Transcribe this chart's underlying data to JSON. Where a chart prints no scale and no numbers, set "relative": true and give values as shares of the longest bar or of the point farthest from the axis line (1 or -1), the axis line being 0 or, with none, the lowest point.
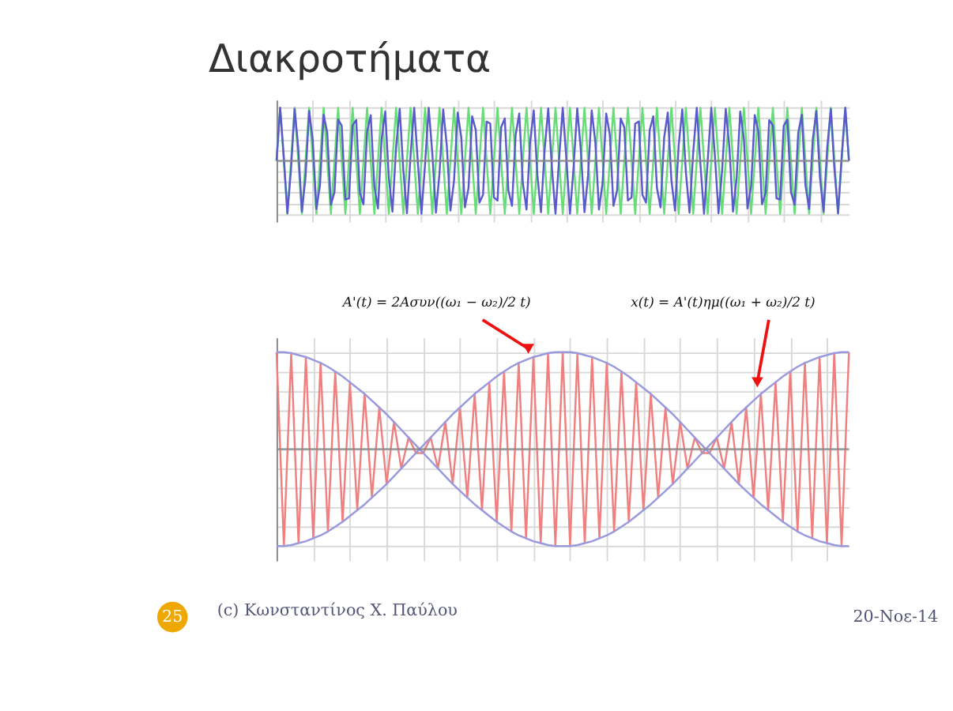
{
  "chart_data": [
    {
      "type": "line",
      "title": "Διακροτήματα",
      "relative": true,
      "grid": true,
      "tick_labels": false,
      "line_style": "solid",
      "categories": [
        null,
        null,
        null,
        null,
        null,
        null,
        null,
        null,
        null,
        null,
        null,
        null,
        null,
        null,
        null,
        null,
        null,
        null,
        null,
        null,
        null,
        null,
        null,
        null,
        null,
        null,
        null,
        null,
        null,
        null,
        null,
        null,
        null,
        null,
        null,
        null,
        null,
        null,
        null,
        null,
        null,
        null,
        null,
        null,
        null,
        null,
        null,
        null,
        null,
        null,
        null,
        null,
        null,
        null,
        null,
        null,
        null,
        null,
        null,
        null,
        null,
        null,
        null,
        null,
        null,
        null,
        null,
        null,
        null,
        null,
        null,
        null,
        null,
        null,
        null,
        null,
        null,
        null,
        null,
        null,
        null,
        null,
        null,
        null,
        null,
        null,
        null,
        null,
        null,
        null,
        null,
        null,
        null,
        null,
        null,
        null,
        null,
        null,
        null,
        null,
        null,
        null,
        null,
        null,
        null,
        null,
        null,
        null,
        null,
        null,
        null,
        null,
        null,
        null,
        null,
        null,
        null,
        null,
        null,
        null,
        null,
        null,
        null,
        null,
        null,
        null,
        null,
        null,
        null,
        null,
        null,
        null,
        null,
        null,
        null,
        null,
        null,
        null,
        null,
        null,
        null,
        null,
        null,
        null,
        null,
        null,
        null,
        null,
        null,
        null,
        null,
        null,
        null,
        null,
        null,
        null,
        null,
        null,
        null
      ],
      "series": [
        {
          "color": "#66dd77",
          "values": [
            0,
            1,
            0,
            -1,
            0,
            1,
            0,
            -1,
            0,
            1,
            0,
            -1,
            0,
            1,
            0,
            -1,
            0,
            1,
            0,
            -1,
            0,
            1,
            0,
            -1,
            0,
            1,
            0,
            -1,
            0,
            1,
            0,
            -1,
            0,
            1,
            0,
            -1,
            0,
            1,
            0,
            -1,
            0,
            1,
            0,
            -1,
            0,
            1,
            0,
            -1,
            0,
            1,
            0,
            -1,
            0,
            1,
            0,
            -1,
            0,
            1,
            0,
            -1,
            0,
            1,
            0,
            -1,
            0,
            1,
            0,
            -1,
            0,
            1,
            0,
            -1,
            0,
            1,
            0,
            -1,
            0,
            1,
            0,
            -1,
            0,
            1,
            0,
            -1,
            0,
            1,
            0,
            -1,
            0,
            1,
            0,
            -1,
            0,
            1,
            0,
            -1,
            0,
            1,
            0,
            -1,
            0,
            1,
            0,
            -1,
            0,
            1,
            0,
            -1,
            0,
            1,
            0,
            -1,
            0,
            1,
            0,
            -1,
            0,
            1,
            0,
            -1,
            0,
            1,
            0,
            -1,
            0,
            1,
            0,
            -1,
            0,
            1,
            0,
            -1,
            0,
            1,
            0,
            -1,
            0,
            1,
            0,
            -1,
            0,
            1,
            0,
            -1,
            0,
            1,
            0,
            -1,
            0,
            1,
            0,
            -1,
            0,
            1,
            0,
            -1,
            0,
            1,
            0
          ]
        },
        {
          "color": "#5a5acc",
          "values": [
            0,
            1.0,
            0.08,
            -0.99,
            -0.16,
            0.98,
            0.24,
            -0.96,
            -0.31,
            0.94,
            0.39,
            -0.91,
            -0.46,
            0.87,
            0.53,
            -0.83,
            -0.59,
            0.78,
            0.66,
            -0.73,
            -0.71,
            0.67,
            0.77,
            -0.61,
            -0.82,
            0.55,
            0.86,
            -0.48,
            -0.9,
            0.41,
            0.93,
            -0.33,
            -0.96,
            0.26,
            0.98,
            -0.18,
            -0.99,
            0.1,
            1.0,
            -0.02,
            -1.0,
            -0.06,
            1.0,
            0.14,
            -0.98,
            -0.22,
            0.97,
            0.29,
            -0.94,
            -0.37,
            0.91,
            0.44,
            -0.88,
            -0.51,
            0.84,
            0.58,
            -0.79,
            -0.64,
            0.74,
            0.7,
            -0.69,
            -0.75,
            0.63,
            0.8,
            -0.56,
            -0.85,
            0.49,
            0.89,
            -0.42,
            -0.92,
            0.35,
            0.95,
            -0.27,
            -0.97,
            0.2,
            0.99,
            -0.12,
            -1.0,
            0.04,
            1.0,
            0.04,
            -1.0,
            -0.12,
            0.99,
            0.2,
            -0.97,
            -0.27,
            0.95,
            0.35,
            -0.92,
            -0.42,
            0.89,
            0.49,
            -0.85,
            -0.56,
            0.8,
            0.63,
            -0.75,
            -0.69,
            0.7,
            0.74,
            -0.64,
            -0.79,
            0.58,
            0.84,
            -0.51,
            -0.88,
            0.44,
            0.91,
            -0.37,
            -0.94,
            0.29,
            0.97,
            -0.22,
            -0.98,
            0.14,
            1.0,
            -0.06,
            -1.0,
            -0.02,
            1.0,
            0.1,
            -0.99,
            -0.18,
            0.98,
            0.26,
            -0.96,
            -0.33,
            0.93,
            0.41,
            -0.9,
            -0.48,
            0.86,
            0.55,
            -0.82,
            -0.61,
            0.77,
            0.67,
            -0.71,
            -0.73,
            0.66,
            0.78,
            -0.59,
            -0.83,
            0.53,
            0.87,
            -0.46,
            -0.91,
            0.39,
            0.94,
            -0.31,
            -0.96,
            0.24,
            0.98,
            -0.16,
            -0.99,
            0.08,
            1.0,
            0
          ]
        }
      ]
    },
    {
      "type": "line",
      "relative": true,
      "grid": true,
      "tick_labels": false,
      "line_style": "solid",
      "categories": [
        null,
        null,
        null,
        null,
        null,
        null,
        null,
        null,
        null,
        null,
        null,
        null,
        null,
        null,
        null,
        null,
        null,
        null,
        null,
        null,
        null,
        null,
        null,
        null,
        null,
        null,
        null,
        null,
        null,
        null,
        null,
        null,
        null,
        null,
        null,
        null,
        null,
        null,
        null,
        null,
        null,
        null,
        null,
        null,
        null,
        null,
        null,
        null,
        null,
        null,
        null,
        null,
        null,
        null,
        null,
        null,
        null,
        null,
        null,
        null,
        null,
        null,
        null,
        null,
        null,
        null,
        null,
        null,
        null,
        null,
        null,
        null,
        null,
        null,
        null,
        null,
        null,
        null,
        null
      ],
      "series": [
        {
          "color": "#f08080",
          "values": [
            1.0,
            -1.0,
            0.99,
            -0.97,
            0.95,
            -0.92,
            0.89,
            -0.85,
            0.8,
            -0.75,
            0.69,
            -0.63,
            0.57,
            -0.5,
            0.43,
            -0.36,
            0.28,
            -0.2,
            0.12,
            -0.04,
            -0.04,
            0.12,
            -0.2,
            0.28,
            -0.36,
            0.43,
            -0.5,
            0.57,
            -0.63,
            0.69,
            -0.75,
            0.8,
            -0.85,
            0.89,
            -0.92,
            0.95,
            -0.97,
            0.99,
            -1.0,
            1.0,
            -1.0,
            0.99,
            -0.97,
            0.95,
            -0.92,
            0.89,
            -0.85,
            0.8,
            -0.75,
            0.69,
            -0.63,
            0.57,
            -0.5,
            0.43,
            -0.36,
            0.28,
            -0.2,
            0.12,
            -0.04,
            -0.04,
            0.12,
            -0.2,
            0.28,
            -0.36,
            0.43,
            -0.5,
            0.57,
            -0.63,
            0.69,
            -0.75,
            0.8,
            -0.85,
            0.89,
            -0.92,
            0.95,
            -0.97,
            0.99,
            -1.0,
            1.0
          ]
        },
        {
          "color": "#9999dd",
          "values": [
            1.0,
            1.0,
            0.99,
            0.97,
            0.95,
            0.92,
            0.89,
            0.85,
            0.8,
            0.75,
            0.69,
            0.63,
            0.57,
            0.5,
            0.43,
            0.36,
            0.28,
            0.2,
            0.12,
            0.04,
            -0.04,
            -0.12,
            -0.2,
            -0.28,
            -0.36,
            -0.43,
            -0.5,
            -0.57,
            -0.63,
            -0.69,
            -0.75,
            -0.8,
            -0.85,
            -0.89,
            -0.92,
            -0.95,
            -0.97,
            -0.99,
            -1.0,
            -1.0,
            -1.0,
            -0.99,
            -0.97,
            -0.95,
            -0.92,
            -0.89,
            -0.85,
            -0.8,
            -0.75,
            -0.69,
            -0.63,
            -0.57,
            -0.5,
            -0.43,
            -0.36,
            -0.28,
            -0.2,
            -0.12,
            -0.04,
            0.04,
            0.12,
            0.2,
            0.28,
            0.36,
            0.43,
            0.5,
            0.57,
            0.63,
            0.69,
            0.75,
            0.8,
            0.85,
            0.89,
            0.92,
            0.95,
            0.97,
            0.99,
            1.0,
            1.0
          ]
        },
        {
          "color": "#9999dd",
          "values": [
            -1.0,
            -1.0,
            -0.99,
            -0.97,
            -0.95,
            -0.92,
            -0.89,
            -0.85,
            -0.8,
            -0.75,
            -0.69,
            -0.63,
            -0.57,
            -0.5,
            -0.43,
            -0.36,
            -0.28,
            -0.2,
            -0.12,
            -0.04,
            0.04,
            0.12,
            0.2,
            0.28,
            0.36,
            0.43,
            0.5,
            0.57,
            0.63,
            0.69,
            0.75,
            0.8,
            0.85,
            0.89,
            0.92,
            0.95,
            0.97,
            0.99,
            1.0,
            1.0,
            1.0,
            0.99,
            0.97,
            0.95,
            0.92,
            0.89,
            0.85,
            0.8,
            0.75,
            0.69,
            0.63,
            0.57,
            0.5,
            0.43,
            0.36,
            0.28,
            0.2,
            0.12,
            0.04,
            -0.04,
            -0.12,
            -0.2,
            -0.28,
            -0.36,
            -0.43,
            -0.5,
            -0.57,
            -0.63,
            -0.69,
            -0.75,
            -0.8,
            -0.85,
            -0.89,
            -0.92,
            -0.95,
            -0.97,
            -0.99,
            -1.0,
            -1.0
          ]
        }
      ],
      "annotations": [
        "A'(t) = 2Aσυν((ω₁ − ω₂)/2 t)",
        "x(t) = A'(t)ημ((ω₁ + ω₂)/2 t)",
        "25",
        "(c) Κωνσταντίνος Χ. Παύλου",
        "20-Νοε-14"
      ]
    }
  ]
}
